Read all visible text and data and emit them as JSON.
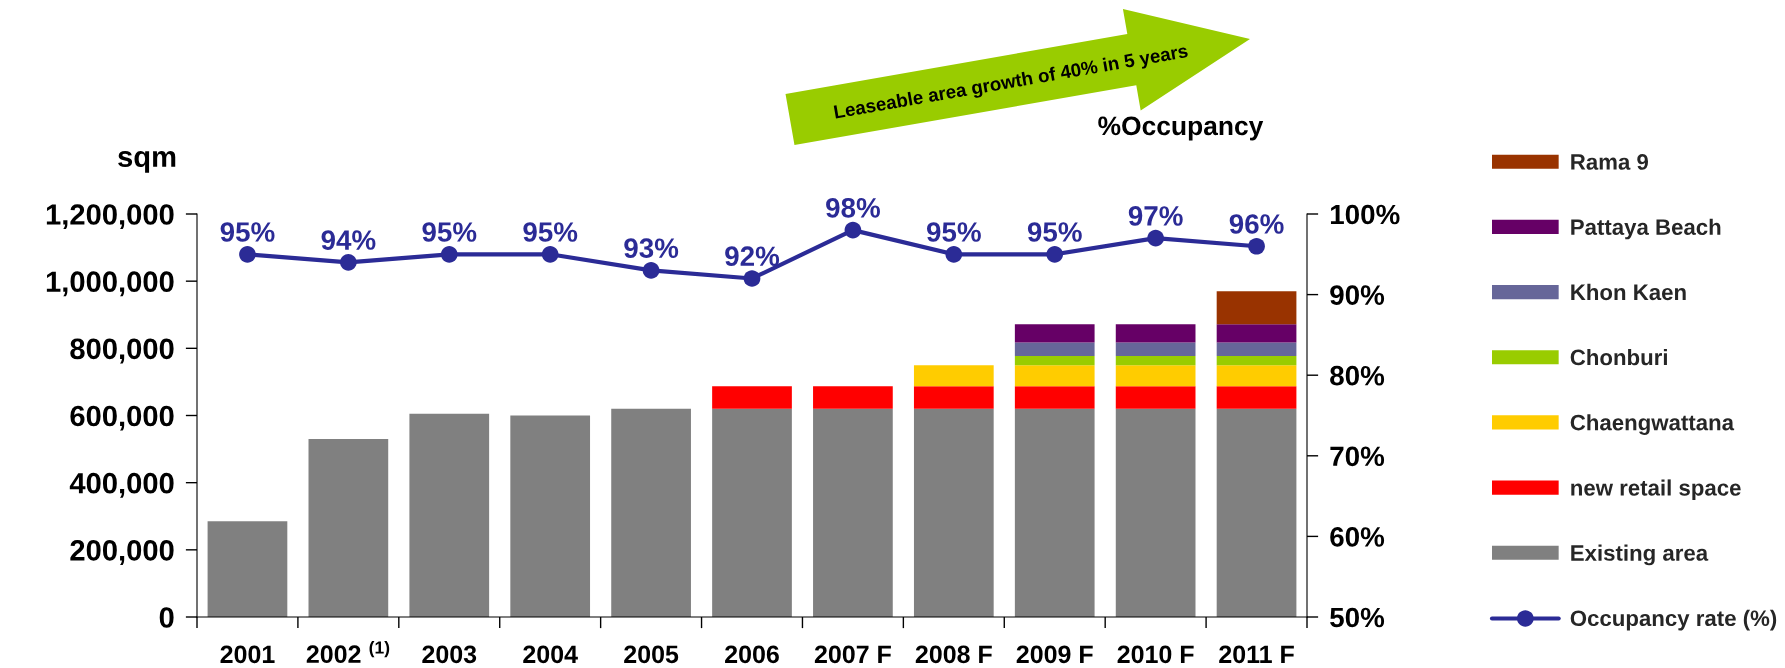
{
  "chart_data": {
    "type": "bar",
    "stacked": true,
    "categories": [
      "2001",
      "2002 $^{(1)}$",
      "2003",
      "2004",
      "2005",
      "2006",
      "2007 F",
      "2008 F",
      "2009 F",
      "2010 F",
      "2011 F"
    ],
    "ylabel": "sqm",
    "y2label": "%Occupancy",
    "ylim": [
      0,
      1200000
    ],
    "yticks": [
      0,
      {
        "value": 200000,
        "label": "200,000"
      },
      {
        "value": 400000,
        "label": "400,000"
      },
      {
        "value": 600000,
        "label": "600,000"
      },
      {
        "value": 800000,
        "label": "800,000"
      },
      {
        "value": 1000000,
        "label": "1,000,000"
      },
      {
        "value": 1200000,
        "label": "1,200,000"
      }
    ],
    "y2lim": [
      50,
      100
    ],
    "y2ticks": [
      {
        "value": 50,
        "label": "50%"
      },
      {
        "value": 60,
        "label": "60%"
      },
      {
        "value": 70,
        "label": "70%"
      },
      {
        "value": 80,
        "label": "80%"
      },
      {
        "value": 90,
        "label": "90%"
      },
      {
        "value": 100,
        "label": "100%"
      }
    ],
    "series": [
      {
        "name": "Existing area",
        "color": "#808080",
        "values": [
          285000,
          530000,
          605000,
          600000,
          620000,
          620000,
          620000,
          620000,
          620000,
          620000,
          620000
        ]
      },
      {
        "name": "new retail space",
        "color": "#ff0000",
        "values": [
          null,
          null,
          null,
          null,
          null,
          67000,
          67000,
          67000,
          67000,
          67000,
          67000
        ]
      },
      {
        "name": "Chaengwattana",
        "color": "#ffcc00",
        "values": [
          null,
          null,
          null,
          null,
          null,
          null,
          null,
          63000,
          63000,
          63000,
          63000
        ]
      },
      {
        "name": "Chonburi",
        "color": "#99cc00",
        "values": [
          null,
          null,
          null,
          null,
          null,
          null,
          null,
          null,
          27000,
          27000,
          27000
        ]
      },
      {
        "name": "Khon Kaen",
        "color": "#666699",
        "values": [
          null,
          null,
          null,
          null,
          null,
          null,
          null,
          null,
          40000,
          40000,
          40000
        ]
      },
      {
        "name": "Pattaya Beach",
        "color": "#660066",
        "values": [
          null,
          null,
          null,
          null,
          null,
          null,
          null,
          null,
          55000,
          55000,
          55000
        ]
      },
      {
        "name": "Rama 9",
        "color": "#993300",
        "values": [
          null,
          null,
          null,
          null,
          null,
          null,
          null,
          null,
          null,
          null,
          98000
        ]
      },
      {
        "name": "Occupancy rate (%)",
        "type": "line",
        "axis": "y2",
        "color": "#2b2b96",
        "marker": "circle",
        "line_style": "solid",
        "values": [
          95,
          94,
          95,
          95,
          93,
          92,
          98,
          95,
          95,
          97,
          96
        ],
        "value_labels": [
          "95%",
          "94%",
          "95%",
          "95%",
          "93%",
          "92%",
          "98%",
          "95%",
          "95%",
          "97%",
          "96%"
        ]
      }
    ],
    "legend": "right",
    "annotations": [
      "Leaseable area growth of 40% in 5 years"
    ]
  }
}
